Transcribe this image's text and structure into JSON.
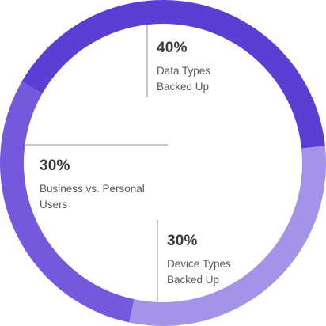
{
  "chart_data": {
    "type": "pie",
    "style": "ring",
    "categories": [
      "Data Types\nBacked Up",
      "Business vs. Personal\nUsers",
      "Device Types\nBacked Up"
    ],
    "values": [
      40,
      30,
      30
    ],
    "value_labels": [
      "40%",
      "30%",
      "30%"
    ],
    "colors": [
      "#5b3fd4",
      "#a393e9",
      "#7459dc"
    ]
  }
}
